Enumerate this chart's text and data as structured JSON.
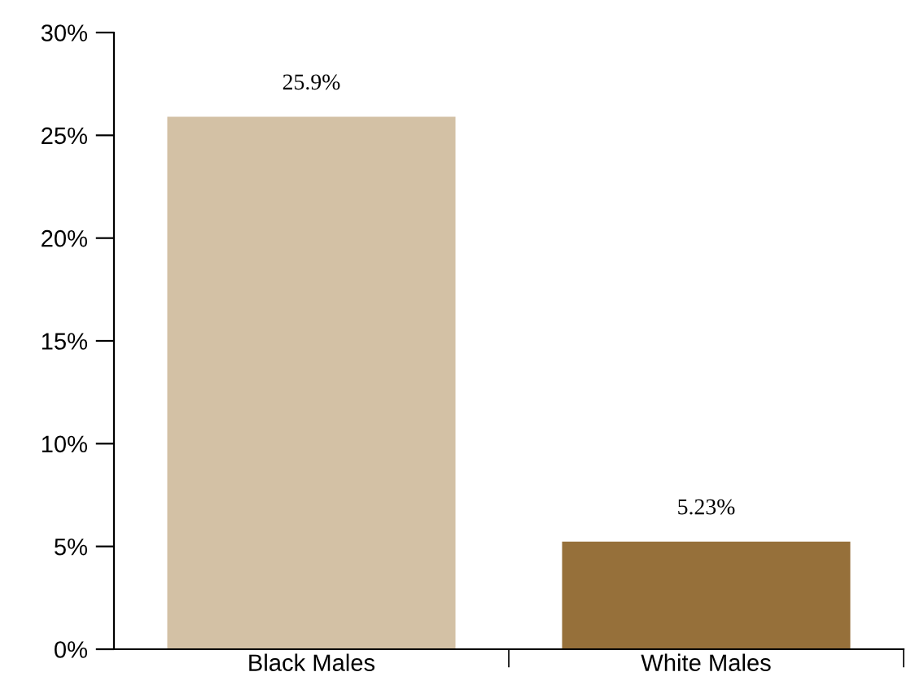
{
  "chart_data": {
    "type": "bar",
    "categories": [
      "Black Males",
      "White Males"
    ],
    "values": [
      25.9,
      5.23
    ],
    "colors": [
      "#d3c1a5",
      "#96703a"
    ],
    "value_labels": [
      "25.9%",
      "5.23%"
    ],
    "ylim": [
      0,
      30
    ],
    "yticks": [
      {
        "value": 0,
        "label": "0%"
      },
      {
        "value": 5,
        "label": "5%"
      },
      {
        "value": 10,
        "label": "10%"
      },
      {
        "value": 15,
        "label": "15%"
      },
      {
        "value": 20,
        "label": "20%"
      },
      {
        "value": 25,
        "label": "25%"
      },
      {
        "value": 30,
        "label": "30%"
      }
    ],
    "grid": false
  }
}
